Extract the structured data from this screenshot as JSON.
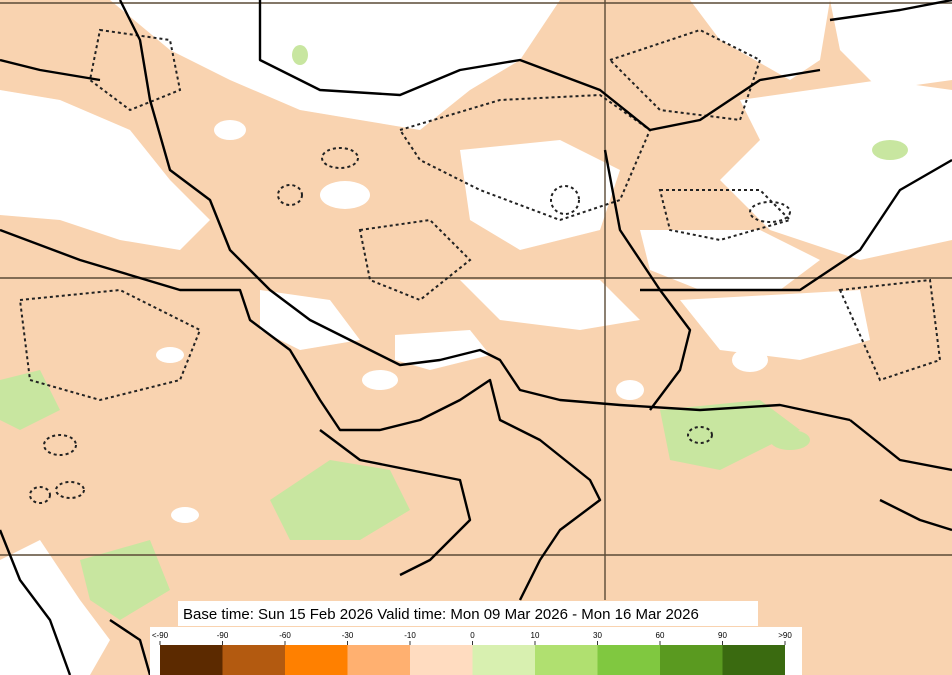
{
  "caption": "Base time: Sun 15 Feb 2026 Valid time: Mon 09 Mar 2026 - Mon 16 Mar 2026",
  "legend": {
    "labels": [
      "<-90",
      "-90",
      "-60",
      "-30",
      "-10",
      "0",
      "10",
      "30",
      "60",
      "90",
      ">90"
    ],
    "colors": [
      "#5c2a00",
      "#b35a10",
      "#ff8000",
      "#ffb070",
      "#ffdcc0",
      "#d8f0b0",
      "#b0e070",
      "#80c840",
      "#5a9a20",
      "#3a6a10"
    ]
  }
}
